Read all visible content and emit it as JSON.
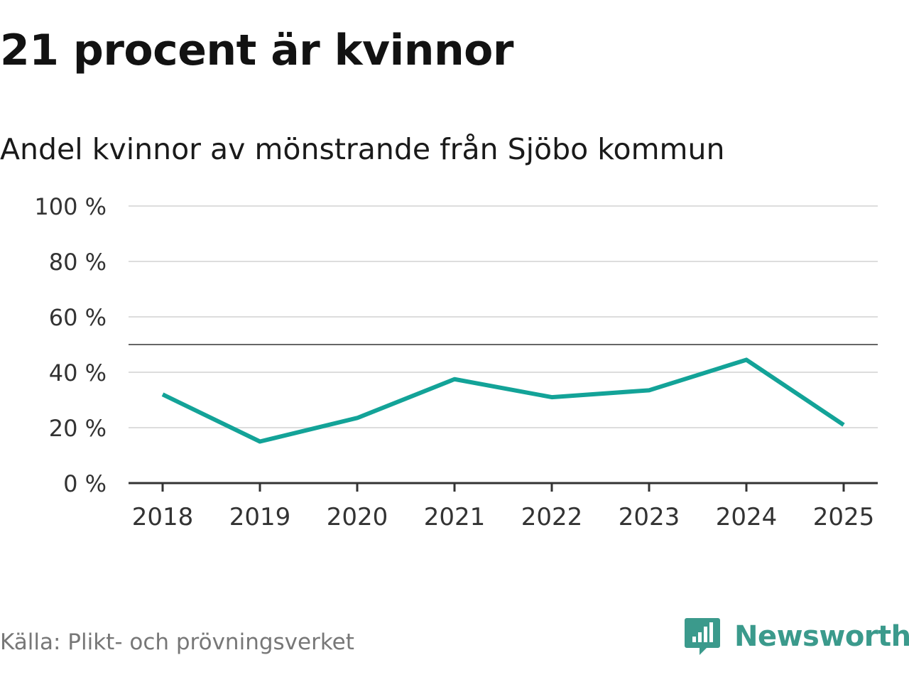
{
  "title": "21 procent är kvinnor",
  "subtitle": "Andel kvinnor av mönstrande från Sjöbo kommun",
  "source": "Källa: Plikt- och prövningsverket",
  "brand": {
    "name": "Newsworthy",
    "icon": "bar-chart-speech-bubble-icon",
    "color": "#3b9a8c"
  },
  "colors": {
    "line": "#13a398",
    "grid": "#dddddd",
    "axis": "#333333",
    "reference": "#666666"
  },
  "chart_data": {
    "type": "line",
    "categories": [
      "2018",
      "2019",
      "2020",
      "2021",
      "2022",
      "2023",
      "2024",
      "2025"
    ],
    "series": [
      {
        "values": [
          32,
          15,
          23.5,
          37.5,
          31,
          33.5,
          44.5,
          21
        ]
      }
    ],
    "reference_line": 50,
    "ylim": [
      0,
      100
    ],
    "yticks": [
      0,
      20,
      40,
      60,
      80,
      100
    ],
    "ytick_labels": [
      "0 %",
      "20 %",
      "40 %",
      "60 %",
      "80 %",
      "100 %"
    ],
    "grid": true,
    "legend": "none"
  }
}
